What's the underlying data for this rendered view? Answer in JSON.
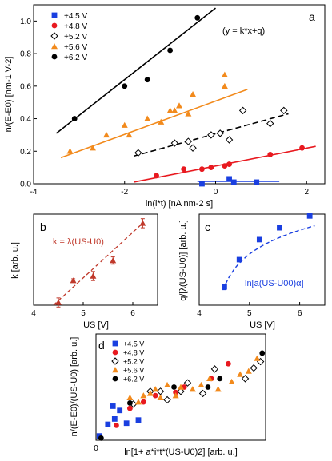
{
  "colors": {
    "4.5": "#1a3fe0",
    "4.8": "#e8191f",
    "5.2": "#000000",
    "5.6": "#f28a1c",
    "6.2": "#000000",
    "fit_b": "#c0392b",
    "fit_c": "#1a3fe0"
  },
  "chart_data": [
    {
      "type": "scatter",
      "panel": "a",
      "xlabel": "ln(i*t) [nA nm-2 s]",
      "ylabel": "n/(E-E0) [nm-1 V-2]",
      "equation": "(y = k*x+q)",
      "xlim": [
        -4,
        2.4
      ],
      "ylim": [
        0,
        1.1
      ],
      "xticks": [
        "-4",
        "-2",
        "0",
        "2"
      ],
      "yticks": [
        "0.0",
        "0.2",
        "0.4",
        "0.6",
        "0.8",
        "1.0"
      ],
      "legend_position": "top-left",
      "series": [
        {
          "name": "+4.5 V",
          "key": "4.5",
          "marker": "square",
          "fit_style": "solid",
          "x": [
            -0.3,
            0.3,
            0.4,
            0.9
          ],
          "y": [
            0.0,
            0.03,
            0.01,
            0.01
          ],
          "fit": [
            [
              -0.4,
              0.015
            ],
            [
              1.4,
              0.015
            ]
          ]
        },
        {
          "name": "+4.8 V",
          "key": "4.8",
          "marker": "circle",
          "fit_style": "solid",
          "x": [
            -1.3,
            -0.7,
            -0.3,
            -0.1,
            0.2,
            0.3,
            1.2,
            1.9
          ],
          "y": [
            0.05,
            0.09,
            0.09,
            0.1,
            0.11,
            0.12,
            0.18,
            0.22
          ],
          "fit": [
            [
              -1.8,
              0.01
            ],
            [
              2.2,
              0.23
            ]
          ]
        },
        {
          "name": "+5.2 V",
          "key": "5.2",
          "marker": "diamond",
          "fit_style": "dashed",
          "x": [
            -1.7,
            -0.9,
            -0.6,
            -0.5,
            -0.1,
            0.1,
            0.3,
            0.6,
            1.2,
            1.5
          ],
          "y": [
            0.19,
            0.25,
            0.26,
            0.22,
            0.3,
            0.31,
            0.27,
            0.45,
            0.37,
            0.45
          ],
          "fit": [
            [
              -1.8,
              0.17
            ],
            [
              1.6,
              0.43
            ]
          ]
        },
        {
          "name": "+5.6 V",
          "key": "5.6",
          "marker": "triangle",
          "fit_style": "solid",
          "x": [
            -3.2,
            -2.7,
            -2.4,
            -2.0,
            -1.9,
            -1.5,
            -1.2,
            -1.0,
            -0.9,
            -0.8,
            -0.6,
            -0.5,
            0.2,
            0.2
          ],
          "y": [
            0.2,
            0.22,
            0.3,
            0.36,
            0.3,
            0.4,
            0.38,
            0.45,
            0.45,
            0.48,
            0.43,
            0.55,
            0.6,
            0.67
          ],
          "fit": [
            [
              -3.4,
              0.16
            ],
            [
              0.7,
              0.58
            ]
          ]
        },
        {
          "name": "+6.2 V",
          "key": "6.2",
          "marker": "circle",
          "fit_style": "solid",
          "x": [
            -3.1,
            -2.0,
            -1.5,
            -1.0,
            -0.4
          ],
          "y": [
            0.4,
            0.6,
            0.64,
            0.82,
            1.02
          ],
          "fit": [
            [
              -3.5,
              0.31
            ],
            [
              0.0,
              1.08
            ]
          ]
        }
      ]
    },
    {
      "type": "scatter",
      "panel": "b",
      "xlabel": "US [V]",
      "ylabel": "k [arb. u.]",
      "annotation": "k = λ(US-U0)",
      "xlim": [
        4,
        6.5
      ],
      "ylim": [
        0,
        1
      ],
      "xticks": [
        "4",
        "5",
        "6"
      ],
      "x": [
        4.5,
        4.8,
        5.2,
        5.6,
        6.2
      ],
      "y": [
        0.03,
        0.27,
        0.32,
        0.49,
        0.9
      ],
      "yerr": [
        0.05,
        0.02,
        0.05,
        0.04,
        0.05
      ],
      "fit": [
        [
          4.4,
          0.0
        ],
        [
          6.2,
          0.9
        ]
      ]
    },
    {
      "type": "scatter",
      "panel": "c",
      "xlabel": "US [V]",
      "ylabel": "q/[λ(US-U0)] [arb. u.]",
      "annotation": "ln[a(US-U00)α]",
      "xlim": [
        4,
        6.5
      ],
      "ylim": [
        0,
        1
      ],
      "xticks": [
        "4",
        "5",
        "6"
      ],
      "x": [
        4.5,
        4.8,
        5.2,
        5.6,
        6.2
      ],
      "y": [
        0.2,
        0.5,
        0.72,
        0.85,
        0.98
      ],
      "yerr": [
        0.03,
        0.02,
        0.02,
        0.02,
        0.02
      ]
    },
    {
      "type": "scatter",
      "panel": "d",
      "xlabel": "ln[1+ a*i*t*(US-U0)2] [arb. u.]",
      "ylabel": "n/(E-E0)/(US-U0) [arb. u.]",
      "xlim": [
        0,
        1
      ],
      "ylim": [
        0,
        1
      ],
      "xticks": [
        "0"
      ],
      "legend_position": "top-left",
      "series": [
        {
          "name": "+4.5 V",
          "key": "4.5",
          "marker": "square",
          "x": [
            0.02,
            0.07,
            0.11,
            0.1,
            0.14,
            0.18,
            0.25
          ],
          "y": [
            0.04,
            0.15,
            0.2,
            0.32,
            0.28,
            0.16,
            0.19
          ]
        },
        {
          "name": "+4.8 V",
          "key": "4.8",
          "marker": "circle",
          "x": [
            0.12,
            0.2,
            0.28,
            0.35,
            0.47,
            0.52,
            0.68,
            0.78
          ],
          "y": [
            0.14,
            0.3,
            0.36,
            0.42,
            0.45,
            0.5,
            0.58,
            0.72
          ]
        },
        {
          "name": "+5.2 V",
          "key": "5.2",
          "marker": "diamond",
          "x": [
            0.22,
            0.32,
            0.38,
            0.42,
            0.5,
            0.54,
            0.63,
            0.7,
            0.88,
            0.93,
            0.97
          ],
          "y": [
            0.34,
            0.46,
            0.46,
            0.38,
            0.46,
            0.54,
            0.44,
            0.67,
            0.58,
            0.68,
            0.74
          ]
        },
        {
          "name": "+5.6 V",
          "key": "5.6",
          "marker": "triangle",
          "x": [
            0.2,
            0.25,
            0.28,
            0.32,
            0.35,
            0.38,
            0.42,
            0.47,
            0.5,
            0.57,
            0.62,
            0.67,
            0.72,
            0.8,
            0.85,
            0.9,
            0.95
          ],
          "y": [
            0.4,
            0.36,
            0.42,
            0.44,
            0.48,
            0.4,
            0.52,
            0.42,
            0.5,
            0.48,
            0.52,
            0.58,
            0.48,
            0.55,
            0.62,
            0.65,
            0.77
          ]
        },
        {
          "name": "+6.2 V",
          "key": "6.2",
          "marker": "circle",
          "x": [
            0.03,
            0.2,
            0.46,
            0.66,
            0.73,
            0.98
          ],
          "y": [
            0.02,
            0.35,
            0.5,
            0.5,
            0.58,
            0.82
          ]
        }
      ]
    }
  ]
}
